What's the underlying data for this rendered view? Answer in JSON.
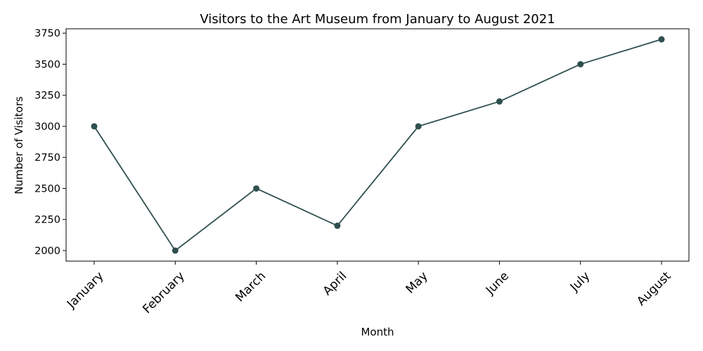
{
  "chart_data": {
    "type": "line",
    "title": "Visitors to the Art Museum from January to August 2021",
    "xlabel": "Month",
    "ylabel": "Number of Visitors",
    "categories": [
      "January",
      "February",
      "March",
      "April",
      "May",
      "June",
      "July",
      "August"
    ],
    "series": [
      {
        "values": [
          3000,
          2000,
          2500,
          2200,
          3000,
          3200,
          3500,
          3700
        ],
        "color": "#2f4f4f"
      }
    ],
    "yticks": [
      2000,
      2250,
      2500,
      2750,
      3000,
      3250,
      3500,
      3750
    ],
    "ylim": [
      1915,
      3785
    ],
    "grid": false,
    "markers": true
  }
}
